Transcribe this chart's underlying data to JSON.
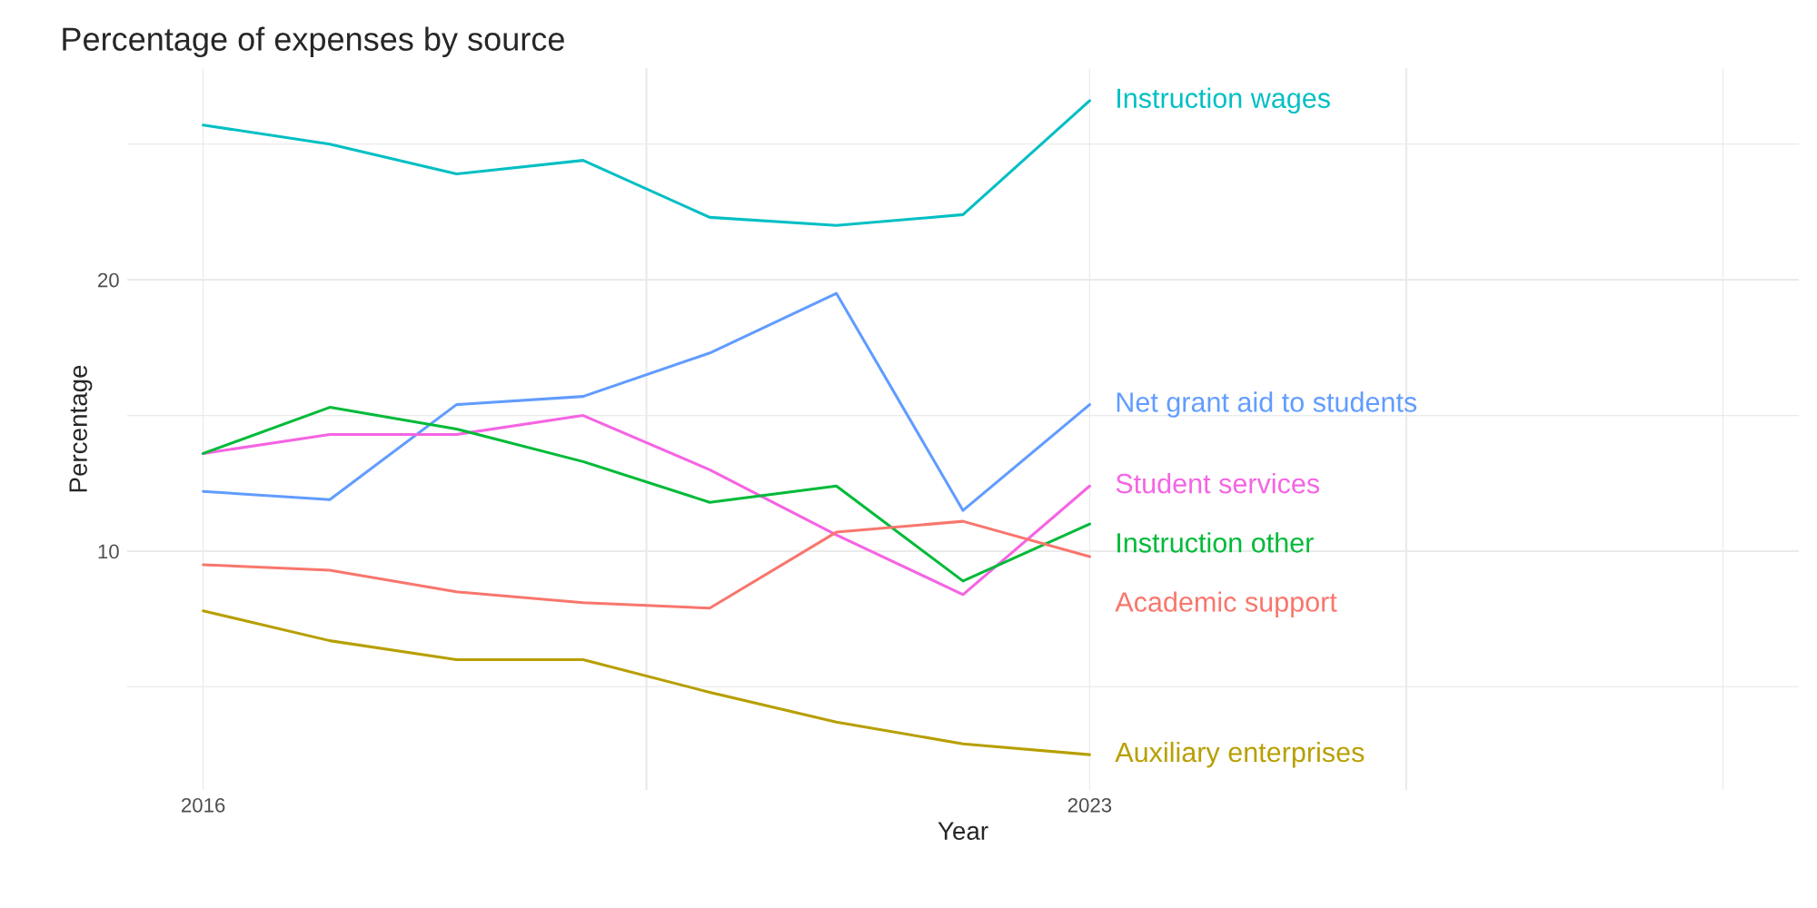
{
  "chart_data": {
    "type": "line",
    "title": "Percentage of expenses by source",
    "xlabel": "Year",
    "ylabel": "Percentage",
    "x": [
      2016,
      2017,
      2018,
      2019,
      2020,
      2021,
      2022,
      2023
    ],
    "xlim": [
      2015.4,
      2028.6
    ],
    "xticks": [
      2016,
      {
        "value": 2019.5,
        "label": null
      },
      2023,
      {
        "value": 2025.5,
        "label": null
      },
      {
        "value": 2028,
        "label": null
      }
    ],
    "ylim": [
      1.2,
      27.8
    ],
    "yticks": [
      {
        "value": 5,
        "label": null
      },
      10,
      {
        "value": 15,
        "label": null
      },
      20,
      {
        "value": 25,
        "label": null
      }
    ],
    "grid": true,
    "legend": false,
    "series": [
      {
        "name": "Instruction wages",
        "color": "#00bfc4",
        "values": [
          25.7,
          25.0,
          23.9,
          24.4,
          22.3,
          22.0,
          22.4,
          26.6
        ]
      },
      {
        "name": "Net grant aid to students",
        "color": "#619cff",
        "values": [
          12.2,
          11.9,
          15.4,
          15.7,
          17.3,
          19.5,
          11.5,
          15.4
        ]
      },
      {
        "name": "Student services",
        "color": "#f564e3",
        "values": [
          13.6,
          14.3,
          14.3,
          15.0,
          13.0,
          10.6,
          8.4,
          12.4
        ]
      },
      {
        "name": "Instruction other",
        "color": "#00ba38",
        "values": [
          13.6,
          15.3,
          14.5,
          13.3,
          11.8,
          12.4,
          8.9,
          11.0
        ]
      },
      {
        "name": "Academic support",
        "color": "#f8766d",
        "values": [
          9.5,
          9.3,
          8.5,
          8.1,
          7.9,
          10.7,
          11.1,
          9.8
        ]
      },
      {
        "name": "Auxiliary enterprises",
        "color": "#b79f00",
        "values": [
          7.8,
          6.7,
          6.0,
          6.0,
          4.8,
          3.7,
          2.9,
          2.5
        ]
      }
    ]
  }
}
